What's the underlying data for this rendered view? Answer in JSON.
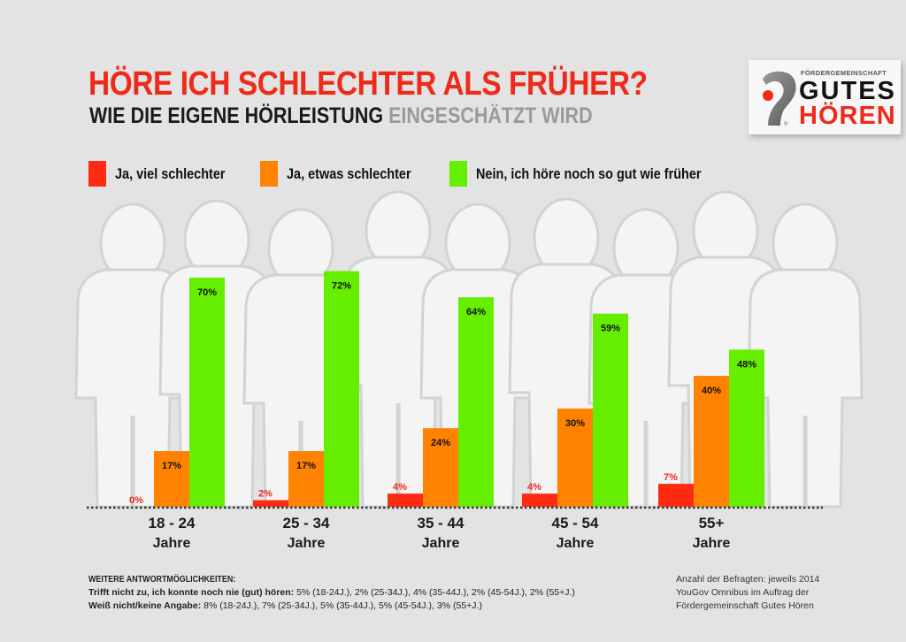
{
  "header": {
    "title": "HÖRE ICH SCHLECHTER ALS FRÜHER?",
    "subtitle_dark": "WIE DIE EIGENE HÖRLEISTUNG",
    "subtitle_grey": "EINGESCHÄTZT WIRD"
  },
  "logo": {
    "small_text": "FÖRDERGEMEINSCHAFT",
    "line1": "GUTES",
    "line2": "HÖREN",
    "registered": "®"
  },
  "colors": {
    "red": "#ff2a12",
    "orange": "#ff8200",
    "green": "#66ee00",
    "background": "#e3e3e3"
  },
  "chart_data": {
    "type": "bar",
    "title": "HÖRE ICH SCHLECHTER ALS FRÜHER?",
    "subtitle": "WIE DIE EIGENE HÖRLEISTUNG EINGESCHÄTZT WIRD",
    "xlabel": "",
    "ylabel": "",
    "ylim": [
      0,
      80
    ],
    "grid": false,
    "legend_position": "top",
    "categories": [
      {
        "line1": "18 - 24",
        "line2": "Jahre"
      },
      {
        "line1": "25 - 34",
        "line2": "Jahre"
      },
      {
        "line1": "35 - 44",
        "line2": "Jahre"
      },
      {
        "line1": "45 - 54",
        "line2": "Jahre"
      },
      {
        "line1": "55+",
        "line2": "Jahre"
      }
    ],
    "series": [
      {
        "name": "Ja, viel schlechter",
        "color": "#ff2a12",
        "values": [
          0,
          2,
          4,
          4,
          7
        ],
        "labels": [
          "0%",
          "2%",
          "4%",
          "4%",
          "7%"
        ]
      },
      {
        "name": "Ja, etwas schlechter",
        "color": "#ff8200",
        "values": [
          17,
          17,
          24,
          30,
          40
        ],
        "labels": [
          "17%",
          "17%",
          "24%",
          "30%",
          "40%"
        ]
      },
      {
        "name": "Nein, ich höre noch so gut wie früher",
        "color": "#66ee00",
        "values": [
          70,
          72,
          64,
          59,
          48
        ],
        "labels": [
          "70%",
          "72%",
          "64%",
          "59%",
          "48%"
        ]
      }
    ]
  },
  "footer": {
    "heading": "WEITERE ANTWORTMÖGLICHKEITEN:",
    "line1_label": "Trifft nicht zu, ich konnte noch nie (gut) hören:",
    "line1_values": "5% (18-24J.), 2% (25-34J.), 4% (35-44J.), 2% (45-54J.), 2% (55+J.)",
    "line2_label": "Weiß nicht/keine Angabe:",
    "line2_values": "8% (18-24J.), 7% (25-34J.), 5% (35-44J.), 5% (45-54J.), 3% (55+J.)",
    "source_line1": "Anzahl der Befragten: jeweils 2014",
    "source_line2": "YouGov Omnibus im Auftrag der",
    "source_line3": "Fördergemeinschaft Gutes Hören"
  }
}
